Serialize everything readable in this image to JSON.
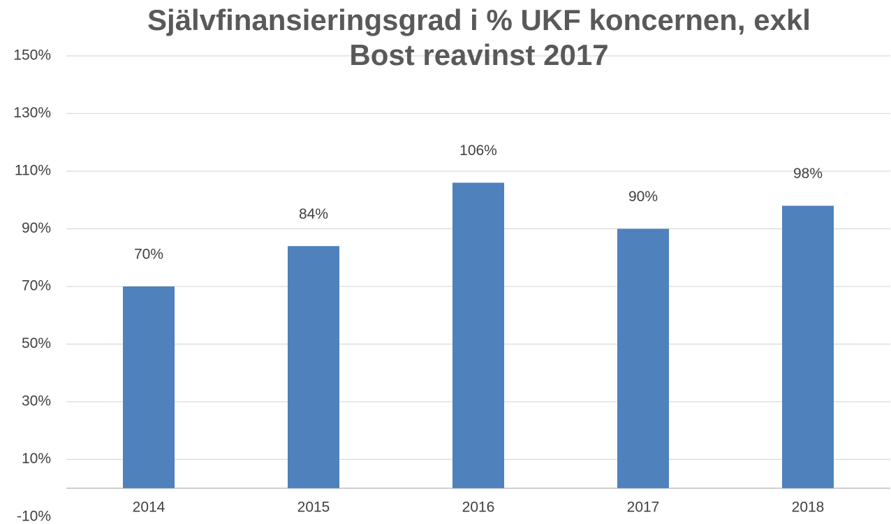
{
  "chart_data": {
    "type": "bar",
    "title": "Självfinansieringsgrad i % UKF koncernen, exkl Bost reavinst 2017",
    "categories": [
      "2014",
      "2015",
      "2016",
      "2017",
      "2018"
    ],
    "values": [
      70,
      84,
      106,
      90,
      98
    ],
    "value_labels": [
      "70%",
      "84%",
      "106%",
      "90%",
      "98%"
    ],
    "color": "#4f81bd",
    "ylim": [
      -10,
      150
    ],
    "yticks": [
      {
        "value": -10,
        "label": "-10%"
      },
      {
        "value": 10,
        "label": "10%"
      },
      {
        "value": 30,
        "label": "30%"
      },
      {
        "value": 50,
        "label": "50%"
      },
      {
        "value": 70,
        "label": "70%"
      },
      {
        "value": 90,
        "label": "90%"
      },
      {
        "value": 110,
        "label": "110%"
      },
      {
        "value": 130,
        "label": "130%"
      },
      {
        "value": 150,
        "label": "150%"
      }
    ],
    "grid": true
  }
}
